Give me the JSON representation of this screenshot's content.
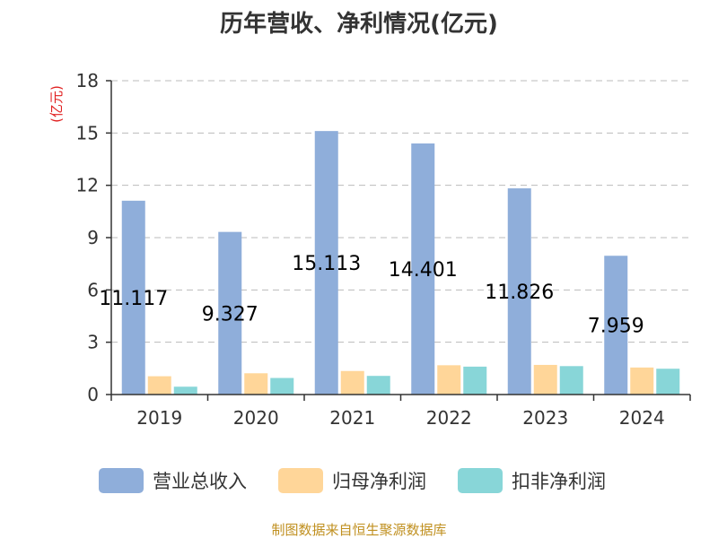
{
  "chart_data": {
    "type": "bar",
    "title": "历年营收、净利情况(亿元)",
    "yunit": "(亿元)",
    "categories": [
      "2019",
      "2020",
      "2021",
      "2022",
      "2023",
      "2024"
    ],
    "ylim": [
      0,
      18
    ],
    "yticks": [
      0,
      3,
      6,
      9,
      12,
      15,
      18
    ],
    "grid": true,
    "legend_position": "bottom",
    "series": [
      {
        "name": "营业总收入",
        "color": "#8FAEDA",
        "values": [
          11.117,
          9.327,
          15.113,
          14.401,
          11.826,
          7.959
        ],
        "labels": [
          "11.117",
          "9.327",
          "15.113",
          "14.401",
          "11.826",
          "7.959"
        ]
      },
      {
        "name": "归母净利润",
        "color": "#FFD699",
        "values": [
          1.05,
          1.22,
          1.35,
          1.68,
          1.7,
          1.55
        ]
      },
      {
        "name": "扣非净利润",
        "color": "#88D6D8",
        "values": [
          0.45,
          0.95,
          1.07,
          1.6,
          1.63,
          1.48
        ]
      }
    ]
  },
  "colors": {
    "title": "#333333",
    "unit": "#E02020",
    "source": "#C09020"
  },
  "source_text": "制图数据来自恒生聚源数据库"
}
